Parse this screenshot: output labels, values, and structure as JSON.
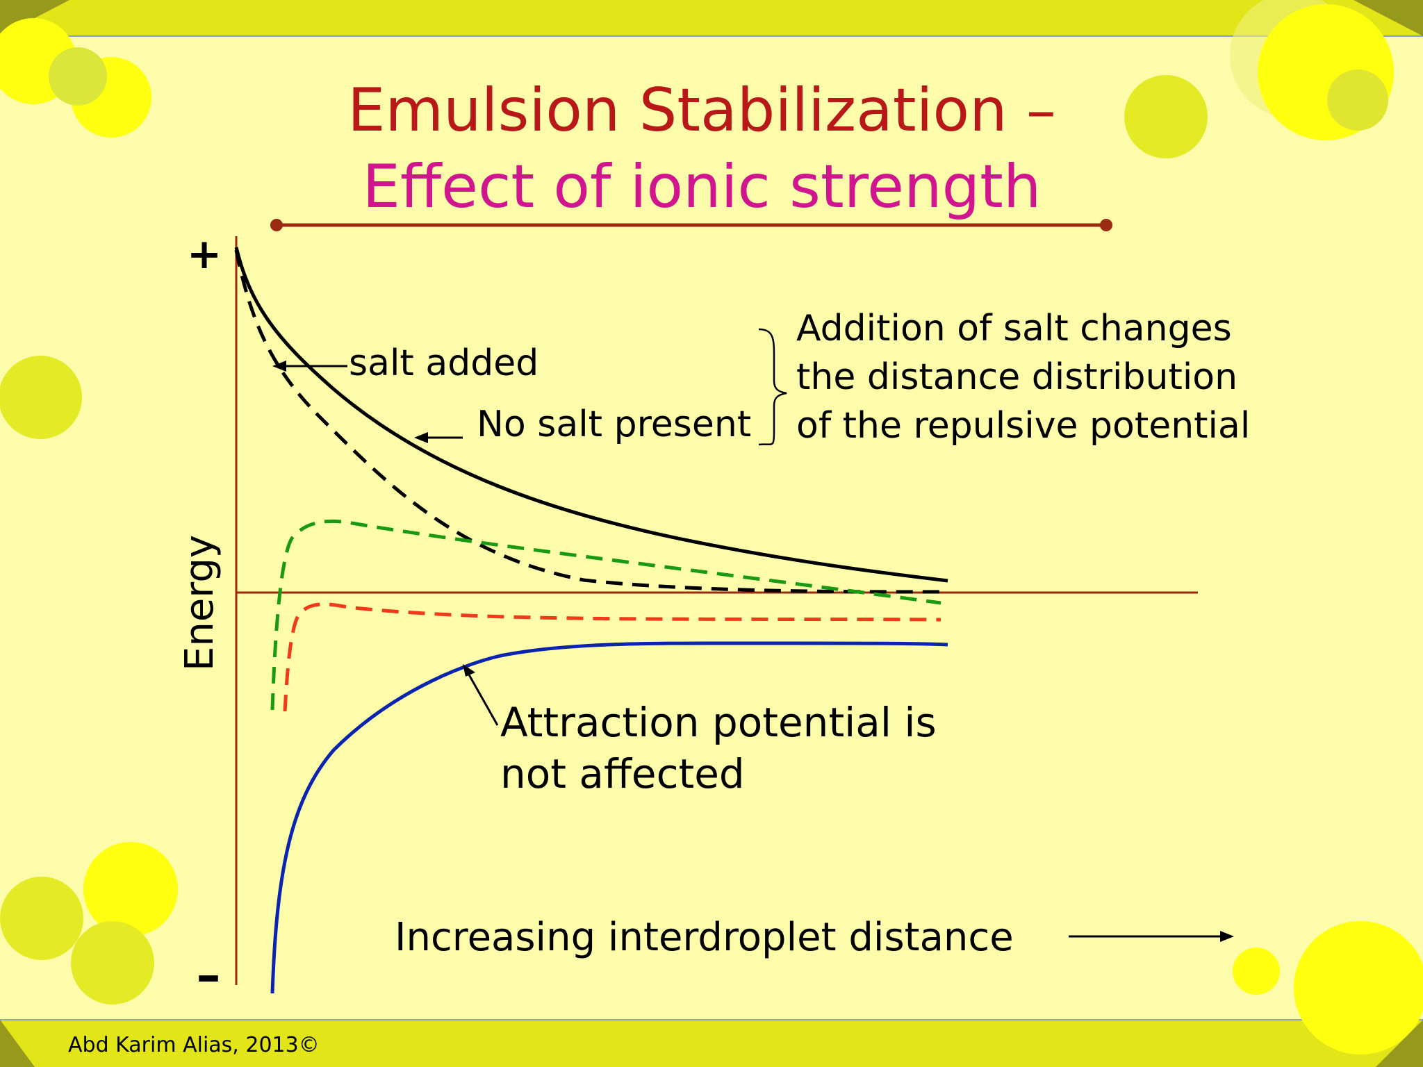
{
  "slide": {
    "title_line1": "Emulsion Stabilization –",
    "title_line2": "Effect of  ionic strength",
    "footer": "Abd Karim Alias, 2013©"
  },
  "diagram": {
    "y_axis_label": "Energy",
    "y_top_marker": "+",
    "y_bottom_marker": "–",
    "x_axis_label": "Increasing interdroplet distance",
    "annotations": {
      "salt_added": "salt added",
      "no_salt": "No salt present",
      "salt_effect": [
        "Addition of  salt changes",
        "the distance distribution",
        "of  the repulsive potential"
      ],
      "attraction": [
        "Attraction potential is",
        "not affected"
      ]
    },
    "curves": [
      {
        "id": "repulsion-no-salt",
        "color": "#000000",
        "style": "solid"
      },
      {
        "id": "repulsion-salt-added",
        "color": "#000000",
        "style": "dashed"
      },
      {
        "id": "net-no-salt",
        "color": "#1a9a12",
        "style": "dashed"
      },
      {
        "id": "net-salt-added",
        "color": "#f03a1a",
        "style": "dashed"
      },
      {
        "id": "attraction",
        "color": "#0a24b0",
        "style": "solid"
      }
    ],
    "colors": {
      "title_primary": "#b81818",
      "title_secondary": "#d0158e",
      "axis": "#9a2a10",
      "frame": "#e2e618",
      "background": "#fdfcaa"
    }
  }
}
